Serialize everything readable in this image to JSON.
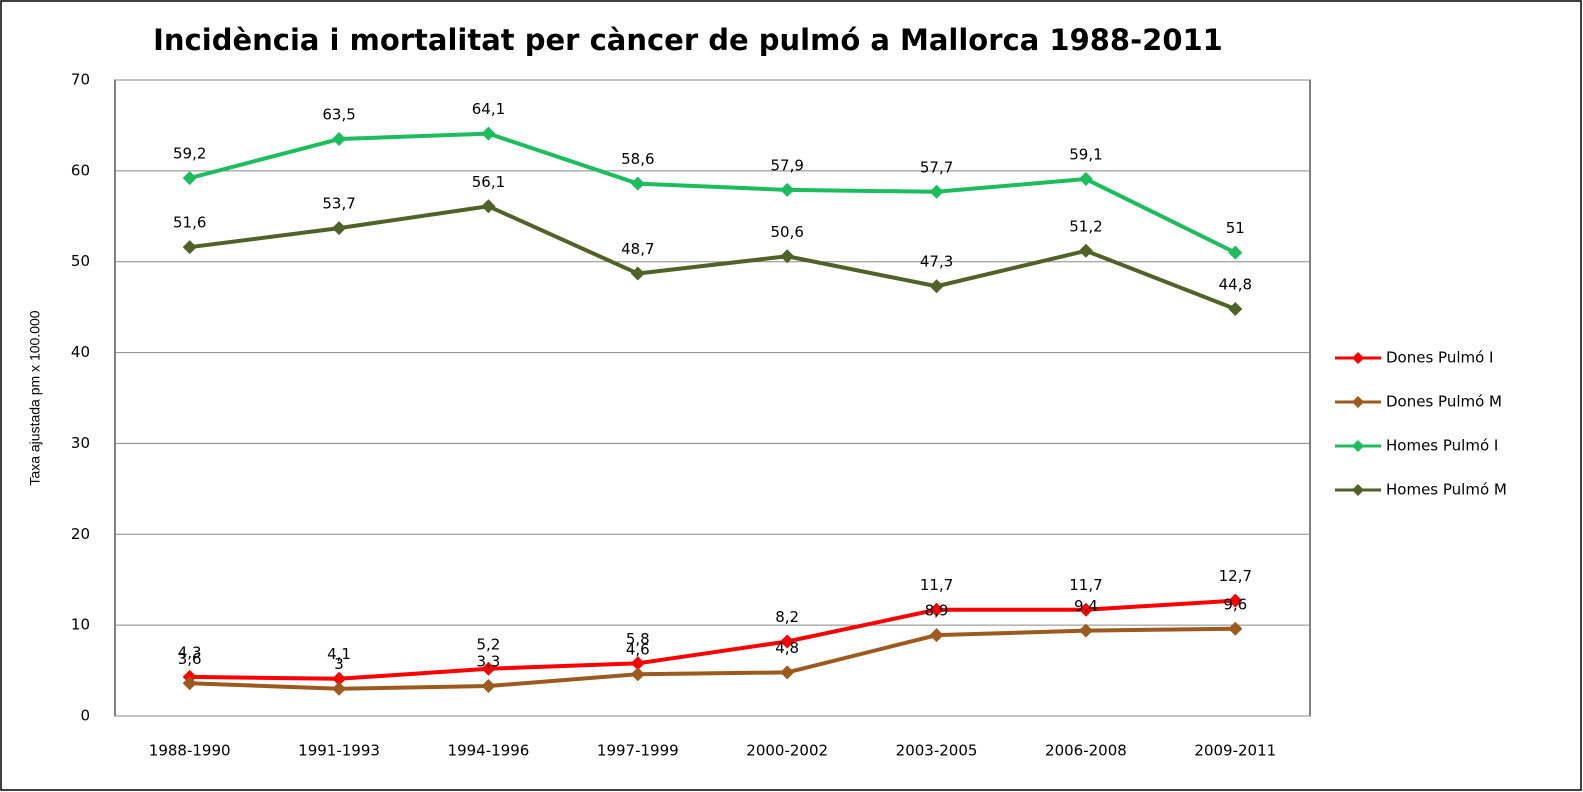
{
  "chart_data": {
    "type": "line",
    "title": "Incidència i mortalitat per càncer de pulmó a Mallorca 1988-2011",
    "y_label": "Taxa ajustada pm x 100.000",
    "categories": [
      "1988-1990",
      "1991-1993",
      "1994-1996",
      "1997-1999",
      "2000-2002",
      "2003-2005",
      "2006-2008",
      "2009-2011"
    ],
    "ylim": [
      0,
      70
    ],
    "yticks": [
      0,
      10,
      20,
      30,
      40,
      50,
      60,
      70
    ],
    "grid": true,
    "legend": "right",
    "series": [
      {
        "name": "Dones Pulmó I",
        "color": "#ff0000",
        "values": [
          4.3,
          4.1,
          5.2,
          5.8,
          8.2,
          11.7,
          11.7,
          12.7
        ],
        "value_labels": [
          "4,3",
          "4,1",
          "5,2",
          "5,8",
          "8,2",
          "11,7",
          "11,7",
          "12,7"
        ]
      },
      {
        "name": "Dones Pulmó M",
        "color": "#9c5a1e",
        "values": [
          3.6,
          3,
          3.3,
          4.6,
          4.8,
          8.9,
          9.4,
          9.6
        ],
        "value_labels": [
          "3,6",
          "3",
          "3,3",
          "4,6",
          "4,8",
          "8,9",
          "9,4",
          "9,6"
        ]
      },
      {
        "name": "Homes Pulmó I",
        "color": "#1cbd5c",
        "values": [
          59.2,
          63.5,
          64.1,
          58.6,
          57.9,
          57.7,
          59.1,
          51
        ],
        "value_labels": [
          "59,2",
          "63,5",
          "64,1",
          "58,6",
          "57,9",
          "57,7",
          "59,1",
          "51"
        ]
      },
      {
        "name": "Homes Pulmó M",
        "color": "#4f6228",
        "values": [
          51.6,
          53.7,
          56.1,
          48.7,
          50.6,
          47.3,
          51.2,
          44.8
        ],
        "value_labels": [
          "51,6",
          "53,7",
          "56,1",
          "48,7",
          "50,6",
          "47,3",
          "51,2",
          "44,8"
        ]
      }
    ]
  }
}
